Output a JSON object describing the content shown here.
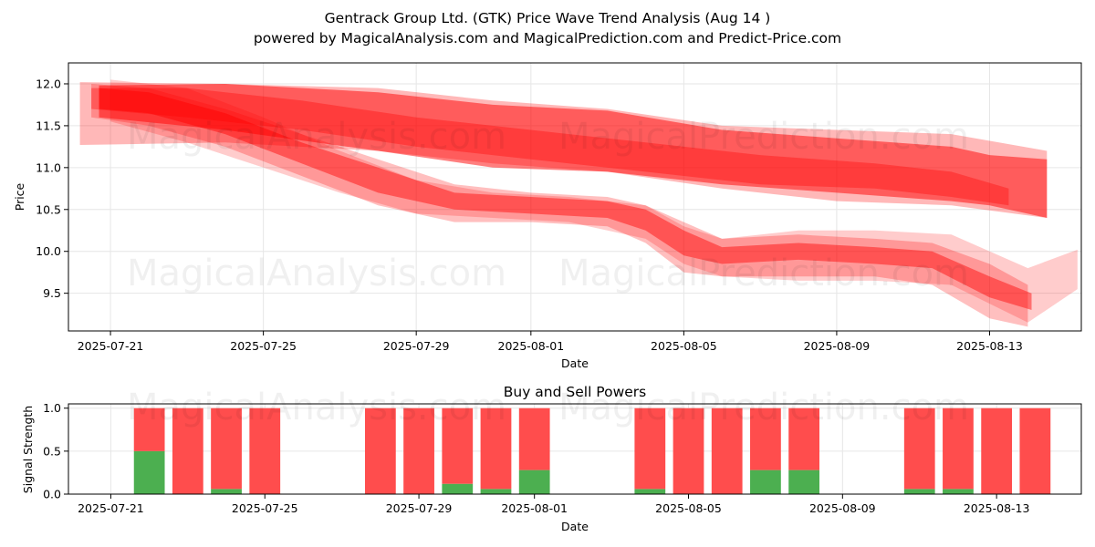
{
  "title_line1": "Gentrack Group Ltd. (GTK) Price Wave Trend Analysis (Aug 14 )",
  "title_line2": "powered by MagicalAnalysis.com and MagicalPrediction.com and Predict-Price.com",
  "watermarks": [
    "MagicalAnalysis.com",
    "MagicalPrediction.com"
  ],
  "colors": {
    "band": "#ff0000",
    "buy": "#4caf50",
    "sell": "#ff4d4d",
    "grid": "#e6e6e6"
  },
  "chart_data": [
    {
      "type": "area",
      "title": "",
      "xlabel": "Date",
      "ylabel": "Price",
      "x_day_range": [
        -1.1,
        25.4
      ],
      "ylim": [
        9.05,
        12.25
      ],
      "x_ticks": [
        {
          "day": 0,
          "label": "2025-07-21"
        },
        {
          "day": 4,
          "label": "2025-07-25"
        },
        {
          "day": 8,
          "label": "2025-07-29"
        },
        {
          "day": 11,
          "label": "2025-08-01"
        },
        {
          "day": 15,
          "label": "2025-08-05"
        },
        {
          "day": 19,
          "label": "2025-08-09"
        },
        {
          "day": 23,
          "label": "2025-08-13"
        }
      ],
      "y_ticks": [
        {
          "value": 9.5,
          "label": "9.5"
        },
        {
          "value": 10.0,
          "label": "10.0"
        },
        {
          "value": 10.5,
          "label": "10.5"
        },
        {
          "value": 11.0,
          "label": "11.0"
        },
        {
          "value": 11.5,
          "label": "11.5"
        },
        {
          "value": 12.0,
          "label": "12.0"
        }
      ],
      "bands": [
        {
          "name": "upper-wide",
          "opacity": 0.28,
          "x": [
            -0.8,
            3,
            7,
            10,
            13,
            16,
            19,
            22,
            24.5
          ],
          "upper": [
            12.02,
            12.0,
            11.95,
            11.8,
            11.7,
            11.5,
            11.45,
            11.4,
            11.2
          ],
          "lower": [
            11.27,
            11.3,
            11.2,
            11.05,
            10.95,
            10.75,
            10.6,
            10.55,
            10.4
          ]
        },
        {
          "name": "upper-core",
          "opacity": 0.5,
          "x": [
            -0.3,
            3,
            7,
            10,
            13,
            16,
            19,
            22,
            23,
            24.5
          ],
          "upper": [
            11.98,
            12.0,
            11.9,
            11.75,
            11.68,
            11.45,
            11.35,
            11.25,
            11.15,
            11.1
          ],
          "lower": [
            11.6,
            11.45,
            11.2,
            11.0,
            10.95,
            10.8,
            10.7,
            10.6,
            10.55,
            10.4
          ]
        },
        {
          "name": "upper-tight",
          "opacity": 0.35,
          "x": [
            -0.5,
            2,
            5,
            8,
            11,
            14,
            17,
            20,
            22,
            23.5
          ],
          "upper": [
            11.95,
            11.95,
            11.8,
            11.6,
            11.45,
            11.3,
            11.15,
            11.05,
            10.95,
            10.75
          ],
          "lower": [
            11.7,
            11.6,
            11.45,
            11.25,
            11.1,
            10.95,
            10.8,
            10.75,
            10.65,
            10.55
          ]
        },
        {
          "name": "lower-core",
          "opacity": 0.45,
          "x": [
            -0.3,
            1,
            3,
            5,
            7,
            9,
            11,
            13,
            14,
            15,
            16,
            18,
            20,
            21.5,
            23,
            24.1
          ],
          "upper": [
            11.95,
            11.9,
            11.65,
            11.3,
            11.0,
            10.7,
            10.65,
            10.6,
            10.5,
            10.25,
            10.05,
            10.1,
            10.05,
            10.0,
            9.7,
            9.5
          ],
          "lower": [
            11.7,
            11.65,
            11.4,
            11.05,
            10.7,
            10.5,
            10.45,
            10.4,
            10.25,
            9.95,
            9.85,
            9.9,
            9.85,
            9.8,
            9.45,
            9.3
          ]
        },
        {
          "name": "lower-wide",
          "opacity": 0.25,
          "x": [
            -0.5,
            1,
            3,
            5,
            7,
            9,
            11,
            13,
            14,
            15,
            16,
            18,
            20,
            21.5,
            23,
            24
          ],
          "upper": [
            12.0,
            11.95,
            11.7,
            11.4,
            11.1,
            10.8,
            10.7,
            10.65,
            10.55,
            10.35,
            10.15,
            10.2,
            10.15,
            10.1,
            9.85,
            9.6
          ],
          "lower": [
            11.6,
            11.5,
            11.25,
            10.9,
            10.55,
            10.35,
            10.35,
            10.3,
            10.1,
            9.75,
            9.7,
            9.7,
            9.7,
            9.6,
            9.2,
            9.1
          ]
        },
        {
          "name": "lower-spread",
          "opacity": 0.2,
          "x": [
            0,
            2,
            4,
            6,
            8,
            10,
            12,
            14,
            15,
            16,
            18,
            20,
            22,
            24,
            25.3
          ],
          "upper": [
            12.05,
            11.95,
            11.6,
            11.2,
            10.85,
            10.7,
            10.65,
            10.55,
            10.3,
            10.15,
            10.25,
            10.25,
            10.2,
            9.8,
            10.02
          ],
          "lower": [
            11.55,
            11.3,
            11.0,
            10.7,
            10.45,
            10.4,
            10.35,
            10.15,
            9.85,
            9.7,
            9.65,
            9.65,
            9.6,
            9.15,
            9.55
          ]
        }
      ]
    },
    {
      "type": "bar",
      "title": "Buy and Sell Powers",
      "xlabel": "Date",
      "ylabel": "Signal Strength",
      "x_day_range": [
        -1.1,
        25.2
      ],
      "ylim": [
        0,
        1.05
      ],
      "x_ticks": [
        {
          "day": 0,
          "label": "2025-07-21"
        },
        {
          "day": 4,
          "label": "2025-07-25"
        },
        {
          "day": 8,
          "label": "2025-07-29"
        },
        {
          "day": 11,
          "label": "2025-08-01"
        },
        {
          "day": 15,
          "label": "2025-08-05"
        },
        {
          "day": 19,
          "label": "2025-08-09"
        },
        {
          "day": 23,
          "label": "2025-08-13"
        }
      ],
      "y_ticks": [
        {
          "value": 0.0,
          "label": "0.0"
        },
        {
          "value": 0.5,
          "label": "0.5"
        },
        {
          "value": 1.0,
          "label": "1.0"
        }
      ],
      "bars": [
        {
          "day": 1,
          "buy": 0.5,
          "sell": 0.5
        },
        {
          "day": 2,
          "buy": 0.0,
          "sell": 1.0
        },
        {
          "day": 3,
          "buy": 0.06,
          "sell": 0.94
        },
        {
          "day": 4,
          "buy": 0.0,
          "sell": 1.0
        },
        {
          "day": 7,
          "buy": 0.0,
          "sell": 1.0
        },
        {
          "day": 8,
          "buy": 0.0,
          "sell": 1.0
        },
        {
          "day": 9,
          "buy": 0.12,
          "sell": 0.88
        },
        {
          "day": 10,
          "buy": 0.06,
          "sell": 0.94
        },
        {
          "day": 11,
          "buy": 0.28,
          "sell": 0.72
        },
        {
          "day": 14,
          "buy": 0.06,
          "sell": 0.94
        },
        {
          "day": 15,
          "buy": 0.0,
          "sell": 1.0
        },
        {
          "day": 16,
          "buy": 0.0,
          "sell": 1.0
        },
        {
          "day": 17,
          "buy": 0.28,
          "sell": 0.72
        },
        {
          "day": 18,
          "buy": 0.28,
          "sell": 0.72
        },
        {
          "day": 21,
          "buy": 0.06,
          "sell": 0.94
        },
        {
          "day": 22,
          "buy": 0.06,
          "sell": 0.94
        },
        {
          "day": 23,
          "buy": 0.0,
          "sell": 1.0
        },
        {
          "day": 24,
          "buy": 0.0,
          "sell": 1.0
        }
      ]
    }
  ]
}
